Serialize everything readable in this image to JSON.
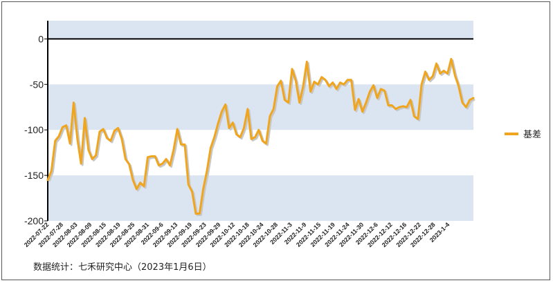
{
  "chart_data": {
    "type": "line",
    "title": "",
    "xlabel": "",
    "ylabel": "",
    "ylim": [
      -200,
      20
    ],
    "yticks": [
      0,
      -50,
      -100,
      -150,
      -200
    ],
    "grid": true,
    "legend_position": "right",
    "colors": {
      "line": "#f0a51e",
      "band": "#dbe5f1"
    },
    "x_tick_labels": [
      "2022-07-22",
      "2022-07-28",
      "2022-08-03",
      "2022-08-09",
      "2022-08-15",
      "2022-08-19",
      "2022-08-25",
      "2022-08-31",
      "2022-09-6",
      "2022-09-13",
      "2022-09-19",
      "2022-09-23",
      "2022-09-29",
      "2022-10-12",
      "2022-10-18",
      "2022-10-24",
      "2022-10-28",
      "2022-11-3",
      "2022-11-9",
      "2022-11-15",
      "2022-11-19",
      "2022-11-24",
      "2022-11-30",
      "2022-12-6",
      "2022-12-12",
      "2022-12-16",
      "2022-12-22",
      "2022-12-28",
      "2023-1-4"
    ],
    "series": [
      {
        "name": "基差",
        "values": [
          -155,
          -145,
          -112,
          -107,
          -97,
          -95,
          -115,
          -70,
          -110,
          -137,
          -87,
          -122,
          -132,
          -128,
          -102,
          -99,
          -109,
          -112,
          -101,
          -98,
          -110,
          -132,
          -138,
          -155,
          -165,
          -158,
          -162,
          -130,
          -129,
          -129,
          -139,
          -137,
          -132,
          -139,
          -122,
          -99,
          -116,
          -116,
          -160,
          -168,
          -192,
          -192,
          -165,
          -145,
          -120,
          -108,
          -93,
          -80,
          -72,
          -98,
          -92,
          -105,
          -108,
          -98,
          -77,
          -110,
          -108,
          -100,
          -112,
          -115,
          -85,
          -77,
          -52,
          -46,
          -67,
          -70,
          -33,
          -46,
          -70,
          -52,
          -25,
          -58,
          -47,
          -50,
          -42,
          -45,
          -52,
          -48,
          -55,
          -48,
          -50,
          -45,
          -45,
          -78,
          -66,
          -80,
          -70,
          -58,
          -51,
          -65,
          -55,
          -57,
          -73,
          -73,
          -77,
          -75,
          -74,
          -75,
          -67,
          -85,
          -88,
          -50,
          -36,
          -45,
          -41,
          -27,
          -38,
          -35,
          -38,
          -22,
          -40,
          -52,
          -70,
          -75,
          -67,
          -65
        ]
      }
    ]
  },
  "legend": {
    "label": "基差"
  },
  "source_note": "数据统计：七禾研究中心（2023年1月6日）"
}
